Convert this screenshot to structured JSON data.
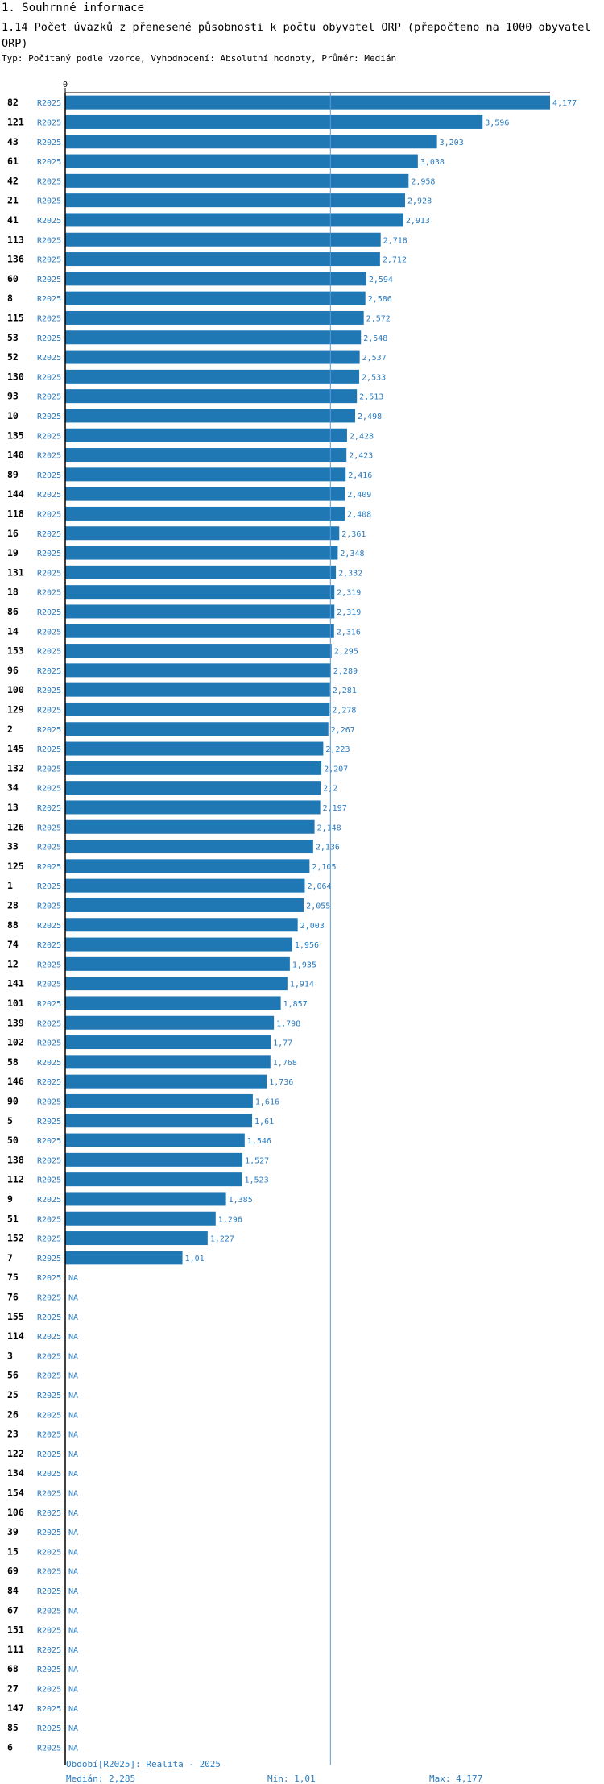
{
  "header": {
    "section": "1. Souhrnné informace",
    "title": "1.14 Počet úvazků z přenesené působnosti k počtu obyvatel ORP (přepočteno na 1000 obyvatel ORP)",
    "subtitle": "Typ: Počítaný podle vzorce, Vyhodnocení: Absolutní hodnoty, Průměr: Medián"
  },
  "colors": {
    "bar": "#1f77b4",
    "text_blue": "#2a7bbf",
    "median_line": "#5b9bd5",
    "axis": "#000000"
  },
  "chart_data": {
    "type": "bar",
    "orientation": "horizontal",
    "x_axis_tick": "0",
    "xlim": [
      0,
      4.177
    ],
    "median_line": 2.285,
    "series_label": "R2025",
    "missing_label": "NA",
    "rows": [
      {
        "id": "82",
        "value": 4.177,
        "label": "4,177"
      },
      {
        "id": "121",
        "value": 3.596,
        "label": "3,596"
      },
      {
        "id": "43",
        "value": 3.203,
        "label": "3,203"
      },
      {
        "id": "61",
        "value": 3.038,
        "label": "3,038"
      },
      {
        "id": "42",
        "value": 2.958,
        "label": "2,958"
      },
      {
        "id": "21",
        "value": 2.928,
        "label": "2,928"
      },
      {
        "id": "41",
        "value": 2.913,
        "label": "2,913"
      },
      {
        "id": "113",
        "value": 2.718,
        "label": "2,718"
      },
      {
        "id": "136",
        "value": 2.712,
        "label": "2,712"
      },
      {
        "id": "60",
        "value": 2.594,
        "label": "2,594"
      },
      {
        "id": "8",
        "value": 2.586,
        "label": "2,586"
      },
      {
        "id": "115",
        "value": 2.572,
        "label": "2,572"
      },
      {
        "id": "53",
        "value": 2.548,
        "label": "2,548"
      },
      {
        "id": "52",
        "value": 2.537,
        "label": "2,537"
      },
      {
        "id": "130",
        "value": 2.533,
        "label": "2,533"
      },
      {
        "id": "93",
        "value": 2.513,
        "label": "2,513"
      },
      {
        "id": "10",
        "value": 2.498,
        "label": "2,498"
      },
      {
        "id": "135",
        "value": 2.428,
        "label": "2,428"
      },
      {
        "id": "140",
        "value": 2.423,
        "label": "2,423"
      },
      {
        "id": "89",
        "value": 2.416,
        "label": "2,416"
      },
      {
        "id": "144",
        "value": 2.409,
        "label": "2,409"
      },
      {
        "id": "118",
        "value": 2.408,
        "label": "2,408"
      },
      {
        "id": "16",
        "value": 2.361,
        "label": "2,361"
      },
      {
        "id": "19",
        "value": 2.348,
        "label": "2,348"
      },
      {
        "id": "131",
        "value": 2.332,
        "label": "2,332"
      },
      {
        "id": "18",
        "value": 2.319,
        "label": "2,319"
      },
      {
        "id": "86",
        "value": 2.319,
        "label": "2,319"
      },
      {
        "id": "14",
        "value": 2.316,
        "label": "2,316"
      },
      {
        "id": "153",
        "value": 2.295,
        "label": "2,295"
      },
      {
        "id": "96",
        "value": 2.289,
        "label": "2,289"
      },
      {
        "id": "100",
        "value": 2.281,
        "label": "2,281"
      },
      {
        "id": "129",
        "value": 2.278,
        "label": "2,278"
      },
      {
        "id": "2",
        "value": 2.267,
        "label": "2,267"
      },
      {
        "id": "145",
        "value": 2.223,
        "label": "2,223"
      },
      {
        "id": "132",
        "value": 2.207,
        "label": "2,207"
      },
      {
        "id": "34",
        "value": 2.2,
        "label": "2,2"
      },
      {
        "id": "13",
        "value": 2.197,
        "label": "2,197"
      },
      {
        "id": "126",
        "value": 2.148,
        "label": "2,148"
      },
      {
        "id": "33",
        "value": 2.136,
        "label": "2,136"
      },
      {
        "id": "125",
        "value": 2.105,
        "label": "2,105"
      },
      {
        "id": "1",
        "value": 2.064,
        "label": "2,064"
      },
      {
        "id": "28",
        "value": 2.055,
        "label": "2,055"
      },
      {
        "id": "88",
        "value": 2.003,
        "label": "2,003"
      },
      {
        "id": "74",
        "value": 1.956,
        "label": "1,956"
      },
      {
        "id": "12",
        "value": 1.935,
        "label": "1,935"
      },
      {
        "id": "141",
        "value": 1.914,
        "label": "1,914"
      },
      {
        "id": "101",
        "value": 1.857,
        "label": "1,857"
      },
      {
        "id": "139",
        "value": 1.798,
        "label": "1,798"
      },
      {
        "id": "102",
        "value": 1.77,
        "label": "1,77"
      },
      {
        "id": "58",
        "value": 1.768,
        "label": "1,768"
      },
      {
        "id": "146",
        "value": 1.736,
        "label": "1,736"
      },
      {
        "id": "90",
        "value": 1.616,
        "label": "1,616"
      },
      {
        "id": "5",
        "value": 1.61,
        "label": "1,61"
      },
      {
        "id": "50",
        "value": 1.546,
        "label": "1,546"
      },
      {
        "id": "138",
        "value": 1.527,
        "label": "1,527"
      },
      {
        "id": "112",
        "value": 1.523,
        "label": "1,523"
      },
      {
        "id": "9",
        "value": 1.385,
        "label": "1,385"
      },
      {
        "id": "51",
        "value": 1.296,
        "label": "1,296"
      },
      {
        "id": "152",
        "value": 1.227,
        "label": "1,227"
      },
      {
        "id": "7",
        "value": 1.01,
        "label": "1,01"
      },
      {
        "id": "75",
        "value": null
      },
      {
        "id": "76",
        "value": null
      },
      {
        "id": "155",
        "value": null
      },
      {
        "id": "114",
        "value": null
      },
      {
        "id": "3",
        "value": null
      },
      {
        "id": "56",
        "value": null
      },
      {
        "id": "25",
        "value": null
      },
      {
        "id": "26",
        "value": null
      },
      {
        "id": "23",
        "value": null
      },
      {
        "id": "122",
        "value": null
      },
      {
        "id": "134",
        "value": null
      },
      {
        "id": "154",
        "value": null
      },
      {
        "id": "106",
        "value": null
      },
      {
        "id": "39",
        "value": null
      },
      {
        "id": "15",
        "value": null
      },
      {
        "id": "69",
        "value": null
      },
      {
        "id": "84",
        "value": null
      },
      {
        "id": "67",
        "value": null
      },
      {
        "id": "151",
        "value": null
      },
      {
        "id": "111",
        "value": null
      },
      {
        "id": "68",
        "value": null
      },
      {
        "id": "27",
        "value": null
      },
      {
        "id": "147",
        "value": null
      },
      {
        "id": "85",
        "value": null
      },
      {
        "id": "6",
        "value": null
      }
    ]
  },
  "footer": {
    "period": "Období[R2025]: Realita - 2025",
    "median": "Medián: 2,285",
    "min": "Min: 1,01",
    "max": "Max: 4,177"
  }
}
